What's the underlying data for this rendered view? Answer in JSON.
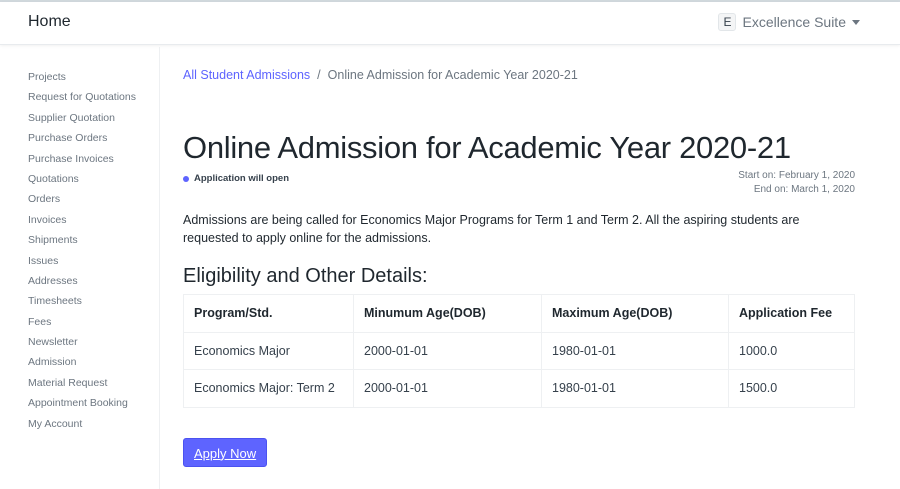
{
  "navbar": {
    "home": "Home",
    "avatar_letter": "E",
    "suite": "Excellence Suite"
  },
  "sidebar": {
    "items": [
      "Projects",
      "Request for Quotations",
      "Supplier Quotation",
      "Purchase Orders",
      "Purchase Invoices",
      "Quotations",
      "Orders",
      "Invoices",
      "Shipments",
      "Issues",
      "Addresses",
      "Timesheets",
      "Fees",
      "Newsletter",
      "Admission",
      "Material Request",
      "Appointment Booking",
      "My Account"
    ]
  },
  "breadcrumb": {
    "parent": "All Student Admissions",
    "separator": "/",
    "current": "Online Admission for Academic Year 2020-21"
  },
  "title": "Online Admission for Academic Year 2020-21",
  "status": {
    "text": "Application will open",
    "color": "#5e64ff"
  },
  "dates": {
    "start": "Start on: February 1, 2020",
    "end": "End on: March 1, 2020"
  },
  "description": "Admissions are being called for Economics Major Programs for Term 1 and Term 2. All the aspiring students are requested to apply online for the admissions.",
  "section_heading": "Eligibility and Other Details:",
  "table": {
    "headers": [
      "Program/Std.",
      "Minumum Age(DOB)",
      "Maximum Age(DOB)",
      "Application Fee"
    ],
    "rows": [
      [
        "Economics Major",
        "2000-01-01",
        "1980-01-01",
        "1000.0"
      ],
      [
        "Economics Major: Term 2",
        "2000-01-01",
        "1980-01-01",
        "1500.0"
      ]
    ]
  },
  "apply_button": "Apply Now",
  "accent_color": "#5e64ff"
}
